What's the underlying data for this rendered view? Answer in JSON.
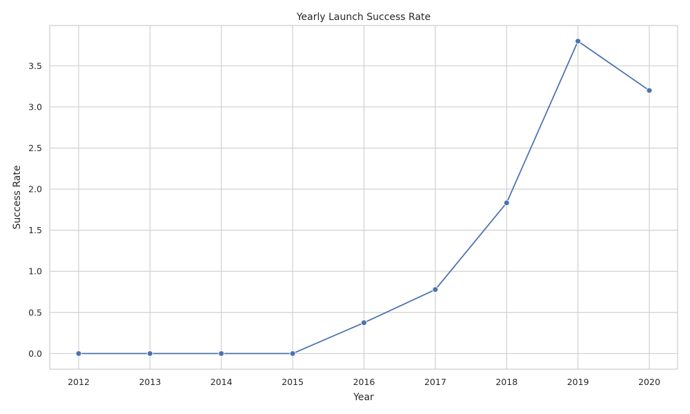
{
  "chart_data": {
    "type": "line",
    "title": "Yearly Launch Success Rate",
    "xlabel": "Year",
    "ylabel": "Success Rate",
    "x": [
      "2012",
      "2013",
      "2014",
      "2015",
      "2016",
      "2017",
      "2018",
      "2019",
      "2020"
    ],
    "series": [
      {
        "values": [
          0.0,
          0.0,
          0.0,
          0.0,
          0.375,
          0.778,
          1.833,
          3.8,
          3.2
        ]
      }
    ],
    "yticks": [
      "0.0",
      "0.5",
      "1.0",
      "1.5",
      "2.0",
      "2.5",
      "3.0",
      "3.5"
    ],
    "ylim": [
      -0.19,
      3.99
    ],
    "grid": true,
    "legend": "none",
    "colors": {
      "line": "#4c72b0",
      "grid": "#cccccc",
      "background": "#ffffff"
    }
  }
}
